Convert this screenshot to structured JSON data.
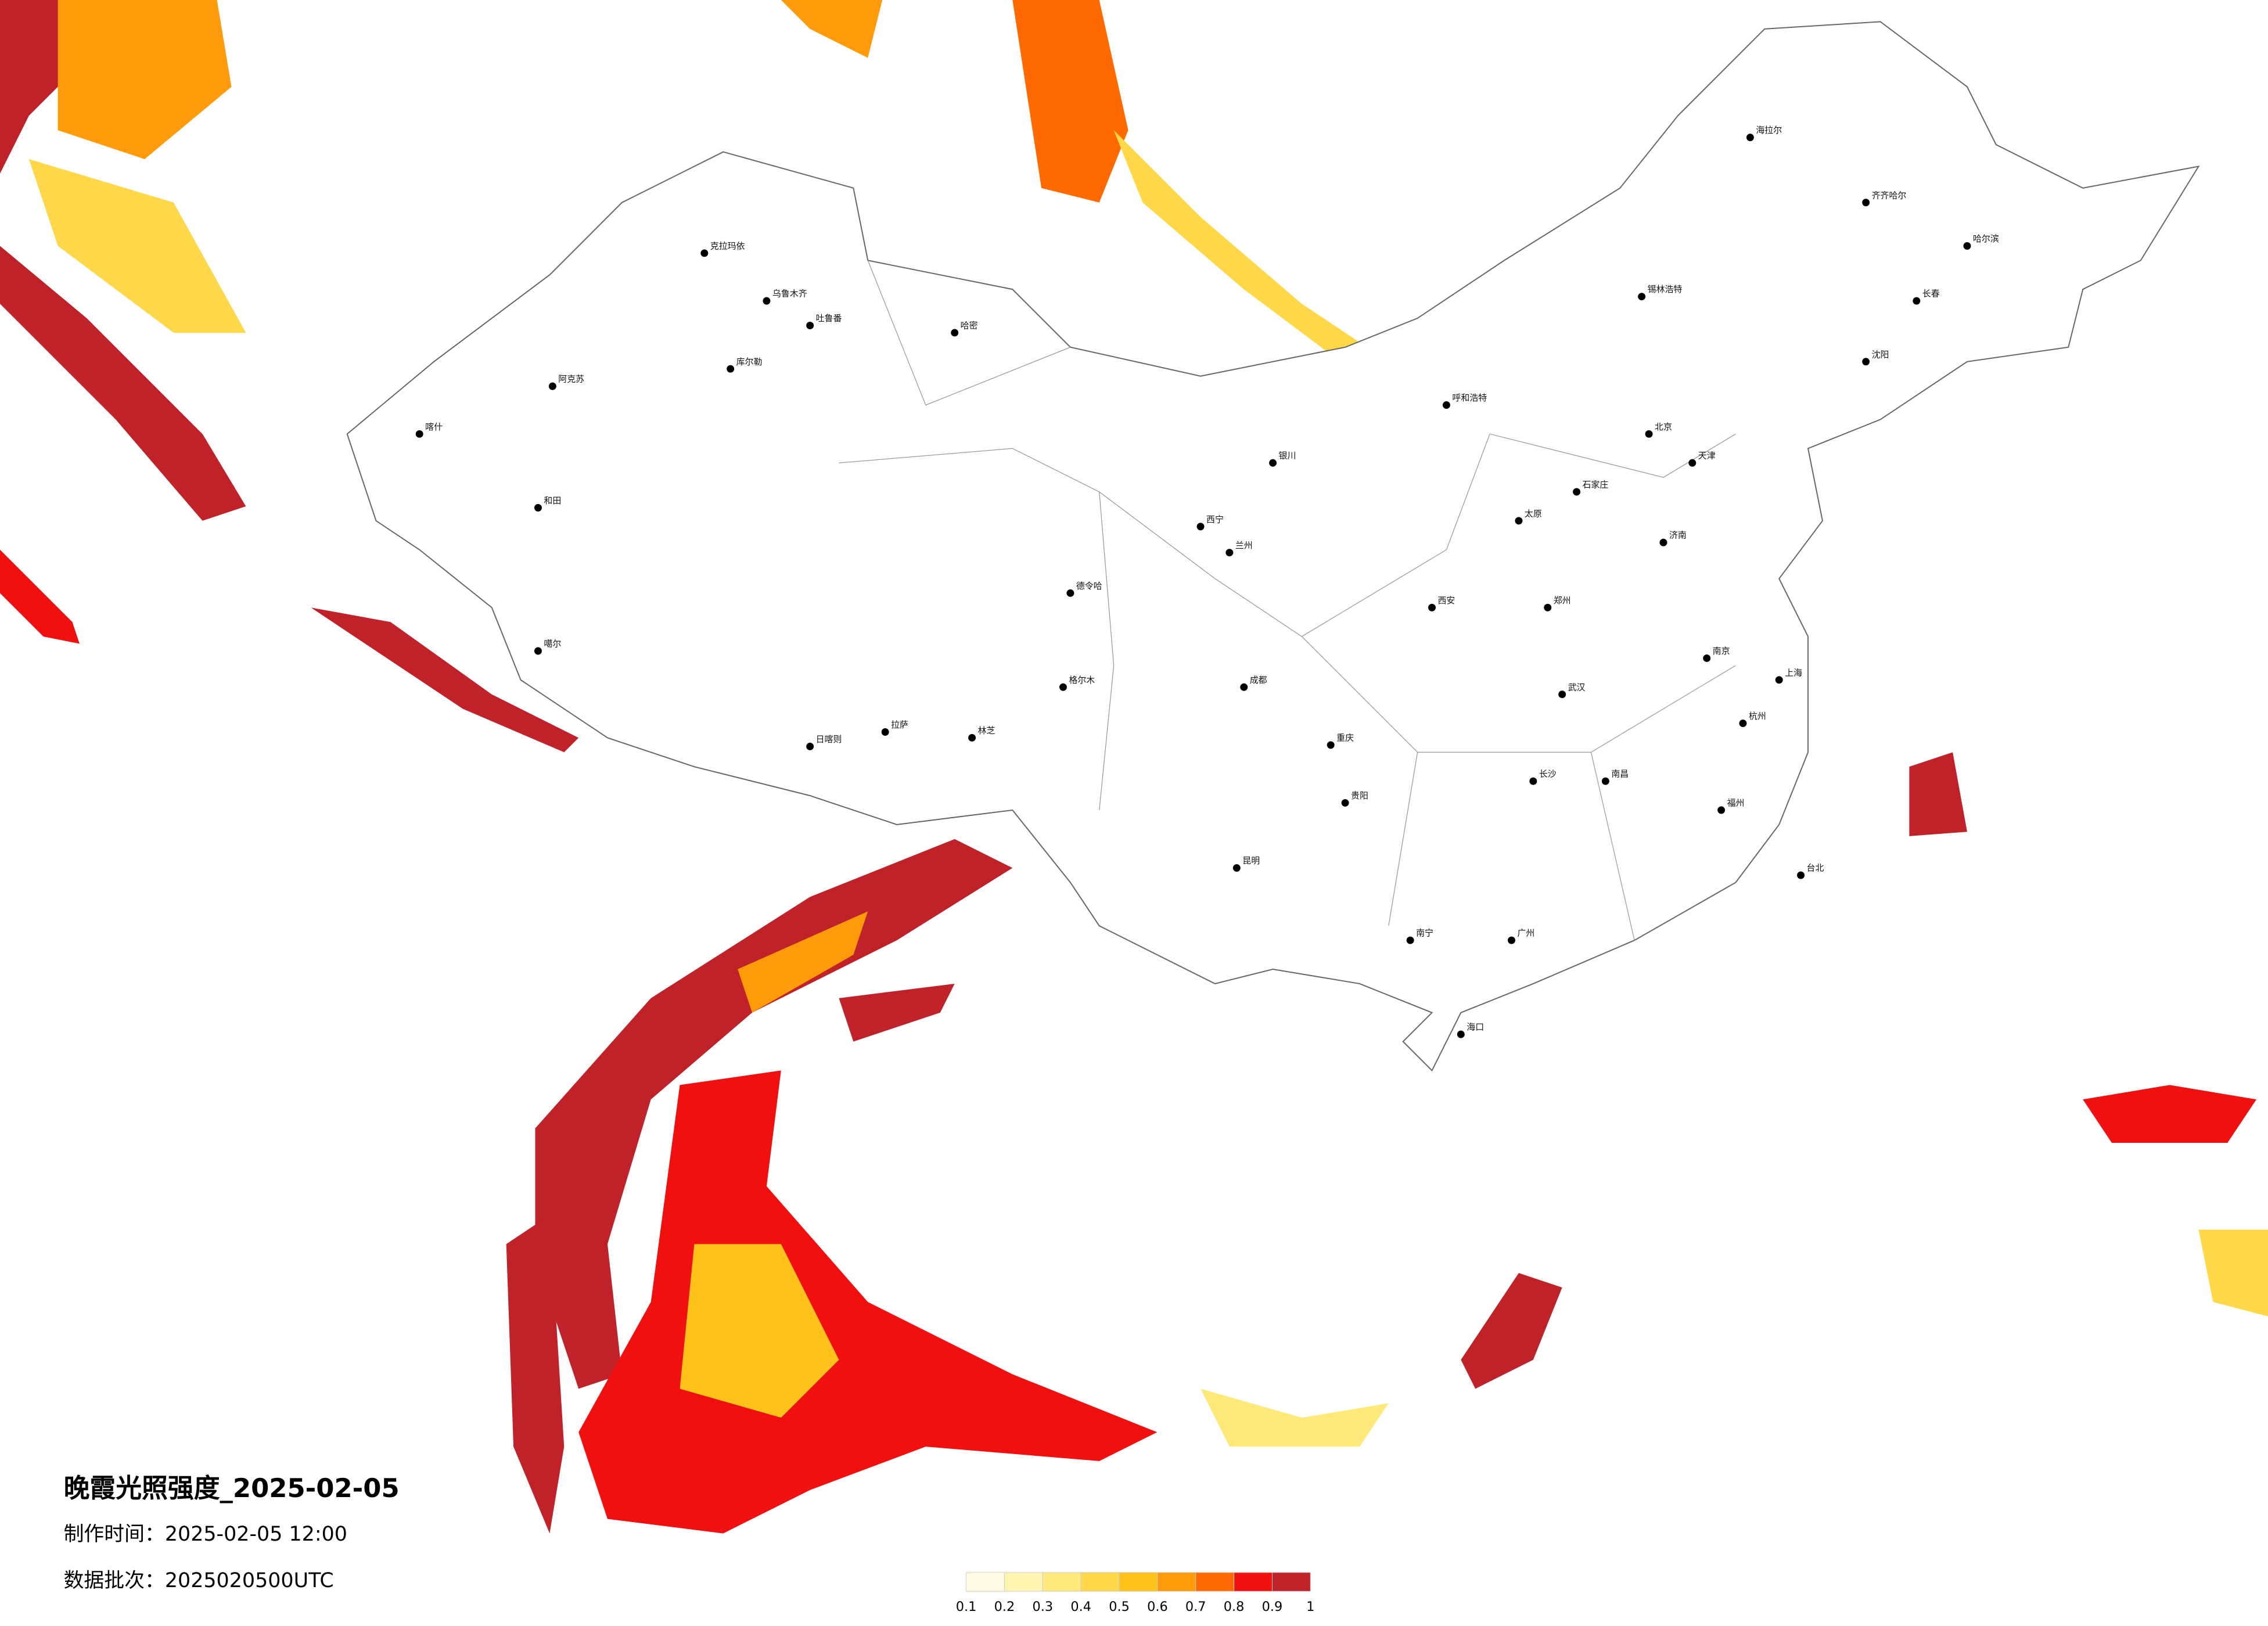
{
  "title": "晚霞光照强度_2025-02-05",
  "production_time": "制作时间：2025-02-05 12:00",
  "data_batch": "数据批次：2025020500UTC",
  "legend": {
    "ticks": [
      0.1,
      0.2,
      0.3,
      0.4,
      0.5,
      0.6,
      0.7,
      0.8,
      0.9,
      1
    ],
    "colors": [
      "#fffbe3",
      "#fff4b0",
      "#ffe97a",
      "#ffd84a",
      "#ffc21a",
      "#ff9a0a",
      "#ff6a00",
      "#f01010",
      "#c0222a"
    ]
  },
  "cities": [
    "克拉玛依",
    "乌鲁木齐",
    "吐鲁番",
    "哈密",
    "库尔勒",
    "阿克苏",
    "喀什",
    "和田",
    "噶尔",
    "日喀则",
    "拉萨",
    "林芝",
    "格尔木",
    "德令哈",
    "西宁",
    "兰州",
    "银川",
    "呼和浩特",
    "北京",
    "天津",
    "石家庄",
    "太原",
    "西安",
    "郑州",
    "济南",
    "南京",
    "上海",
    "杭州",
    "武汉",
    "长沙",
    "南昌",
    "福州",
    "广州",
    "南宁",
    "贵阳",
    "昆明",
    "成都",
    "重庆",
    "海口",
    "哈尔滨",
    "长春",
    "沈阳",
    "齐齐哈尔",
    "海拉尔",
    "锡林浩特",
    "台北"
  ]
}
